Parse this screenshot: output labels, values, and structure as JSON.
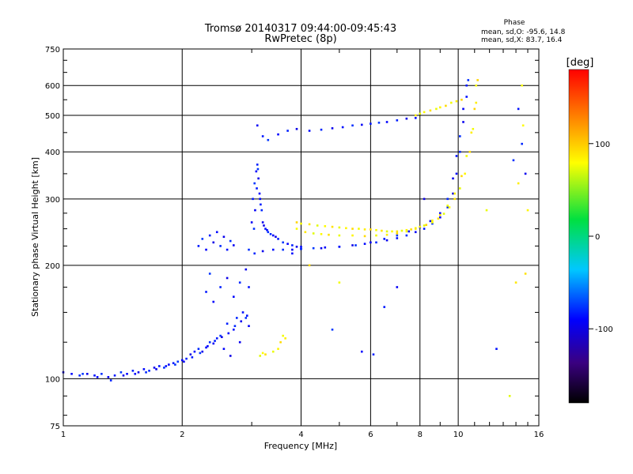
{
  "chart_data": {
    "type": "scatter",
    "title": "Tromsø 20140317 09:44:00-09:45:43",
    "subtitle": "RwPretec (8p)",
    "xlabel": "Frequency [MHz]",
    "ylabel": "Stationary phase Virtual Height [km]",
    "x_scale": "log",
    "y_scale": "log",
    "xlim": [
      1,
      16
    ],
    "ylim": [
      75,
      750
    ],
    "grid": true,
    "xticks": [
      1,
      2,
      4,
      6,
      8,
      10,
      16
    ],
    "xtick_labels": [
      "1",
      "2",
      "4",
      "6",
      "8",
      "10",
      "16"
    ],
    "yticks": [
      75,
      100,
      200,
      300,
      400,
      500,
      600,
      750
    ],
    "ytick_labels": [
      "75",
      "100",
      "200",
      "300",
      "400",
      "500",
      "600",
      "750"
    ],
    "phase_stats": {
      "title": "Phase",
      "lines": [
        "mean, sd,O: -95.6, 14.8",
        "mean, sd,X: 83.7, 16.4"
      ]
    },
    "colorbar": {
      "label": "[deg]",
      "range": [
        -180,
        180
      ],
      "ticks": [
        100,
        0,
        -100
      ],
      "tick_labels": [
        "100",
        "0",
        "-100"
      ]
    },
    "series": [
      {
        "mode": "O",
        "mean_phase": -95.6,
        "sd_phase": 14.8,
        "points": [
          [
            1.0,
            104
          ],
          [
            1.05,
            103
          ],
          [
            1.1,
            102
          ],
          [
            1.15,
            103
          ],
          [
            1.2,
            102
          ],
          [
            1.25,
            103
          ],
          [
            1.3,
            101
          ],
          [
            1.35,
            102
          ],
          [
            1.4,
            104
          ],
          [
            1.45,
            103
          ],
          [
            1.5,
            105
          ],
          [
            1.55,
            104
          ],
          [
            1.6,
            106
          ],
          [
            1.65,
            105
          ],
          [
            1.7,
            107
          ],
          [
            1.75,
            108
          ],
          [
            1.8,
            107
          ],
          [
            1.85,
            109
          ],
          [
            1.9,
            110
          ],
          [
            1.95,
            111
          ],
          [
            2.0,
            112
          ],
          [
            2.05,
            113
          ],
          [
            2.1,
            116
          ],
          [
            2.15,
            118
          ],
          [
            2.2,
            120
          ],
          [
            2.25,
            118
          ],
          [
            2.3,
            121
          ],
          [
            2.35,
            125
          ],
          [
            2.4,
            124
          ],
          [
            2.45,
            128
          ],
          [
            2.5,
            130
          ],
          [
            2.55,
            120
          ],
          [
            2.6,
            140
          ],
          [
            2.65,
            115
          ],
          [
            2.7,
            135
          ],
          [
            2.75,
            145
          ],
          [
            2.8,
            125
          ],
          [
            2.85,
            150
          ],
          [
            2.9,
            145
          ],
          [
            2.95,
            138
          ],
          [
            2.2,
            225
          ],
          [
            2.25,
            235
          ],
          [
            2.3,
            220
          ],
          [
            2.35,
            240
          ],
          [
            2.4,
            230
          ],
          [
            2.45,
            245
          ],
          [
            2.5,
            225
          ],
          [
            2.55,
            238
          ],
          [
            2.6,
            220
          ],
          [
            2.65,
            232
          ],
          [
            2.7,
            226
          ],
          [
            2.3,
            170
          ],
          [
            2.35,
            190
          ],
          [
            2.4,
            160
          ],
          [
            2.5,
            175
          ],
          [
            2.6,
            185
          ],
          [
            2.7,
            165
          ],
          [
            2.8,
            180
          ],
          [
            2.9,
            195
          ],
          [
            2.95,
            175
          ],
          [
            2.95,
            220
          ],
          [
            3.0,
            260
          ],
          [
            3.02,
            300
          ],
          [
            3.05,
            330
          ],
          [
            3.08,
            355
          ],
          [
            3.1,
            370
          ],
          [
            3.12,
            340
          ],
          [
            3.15,
            300
          ],
          [
            3.18,
            280
          ],
          [
            3.2,
            260
          ],
          [
            3.25,
            250
          ],
          [
            3.3,
            245
          ],
          [
            3.4,
            240
          ],
          [
            3.5,
            235
          ],
          [
            3.6,
            230
          ],
          [
            3.7,
            228
          ],
          [
            3.8,
            226
          ],
          [
            3.9,
            224
          ],
          [
            4.0,
            224
          ],
          [
            3.05,
            215
          ],
          [
            3.2,
            218
          ],
          [
            3.4,
            220
          ],
          [
            3.6,
            220
          ],
          [
            3.8,
            220
          ],
          [
            4.0,
            221
          ],
          [
            4.3,
            222
          ],
          [
            4.6,
            223
          ],
          [
            5.0,
            224
          ],
          [
            5.4,
            226
          ],
          [
            5.8,
            228
          ],
          [
            6.2,
            230
          ],
          [
            6.6,
            233
          ],
          [
            7.0,
            236
          ],
          [
            7.4,
            240
          ],
          [
            7.8,
            245
          ],
          [
            8.2,
            250
          ],
          [
            8.6,
            258
          ],
          [
            9.0,
            268
          ],
          [
            9.4,
            285
          ],
          [
            9.7,
            310
          ],
          [
            9.9,
            350
          ],
          [
            10.1,
            400
          ],
          [
            10.3,
            480
          ],
          [
            10.5,
            560
          ],
          [
            10.6,
            620
          ],
          [
            3.1,
            470
          ],
          [
            3.2,
            440
          ],
          [
            3.3,
            430
          ],
          [
            3.5,
            445
          ],
          [
            3.7,
            455
          ],
          [
            3.9,
            460
          ],
          [
            4.2,
            455
          ],
          [
            4.5,
            458
          ],
          [
            4.8,
            462
          ],
          [
            5.1,
            465
          ],
          [
            5.4,
            470
          ],
          [
            5.7,
            472
          ],
          [
            6.0,
            475
          ],
          [
            6.3,
            478
          ],
          [
            6.6,
            480
          ],
          [
            7.0,
            485
          ],
          [
            7.4,
            490
          ],
          [
            7.8,
            492
          ],
          [
            4.0,
            221
          ],
          [
            4.5,
            222
          ],
          [
            5.0,
            224
          ],
          [
            5.5,
            226
          ],
          [
            6.0,
            230
          ],
          [
            6.5,
            235
          ],
          [
            7.0,
            240
          ],
          [
            7.5,
            246
          ],
          [
            8.0,
            252
          ],
          [
            8.5,
            262
          ],
          [
            9.0,
            275
          ],
          [
            9.4,
            300
          ],
          [
            9.7,
            340
          ],
          [
            9.9,
            390
          ],
          [
            10.1,
            440
          ],
          [
            10.3,
            520
          ],
          [
            10.5,
            600
          ],
          [
            1.12,
            103
          ],
          [
            1.22,
            101
          ],
          [
            1.32,
            99
          ],
          [
            1.42,
            102
          ],
          [
            1.52,
            103
          ],
          [
            1.62,
            104
          ],
          [
            1.72,
            106
          ],
          [
            1.82,
            108
          ],
          [
            1.92,
            109
          ],
          [
            2.02,
            111
          ],
          [
            2.12,
            114
          ],
          [
            2.22,
            117
          ],
          [
            2.32,
            122
          ],
          [
            2.42,
            126
          ],
          [
            2.52,
            129
          ],
          [
            2.62,
            132
          ],
          [
            2.72,
            138
          ],
          [
            2.82,
            142
          ],
          [
            2.92,
            147
          ],
          [
            3.04,
            250
          ],
          [
            3.06,
            280
          ],
          [
            3.09,
            320
          ],
          [
            3.11,
            360
          ],
          [
            3.14,
            310
          ],
          [
            3.16,
            290
          ],
          [
            3.22,
            255
          ],
          [
            3.28,
            248
          ],
          [
            3.35,
            242
          ],
          [
            3.45,
            238
          ],
          [
            12.5,
            120
          ],
          [
            13.8,
            380
          ],
          [
            7.0,
            175
          ],
          [
            6.5,
            155
          ],
          [
            4.8,
            135
          ],
          [
            5.7,
            118
          ],
          [
            6.1,
            116
          ],
          [
            8.2,
            300
          ],
          [
            3.8,
            215
          ],
          [
            14.5,
            420
          ],
          [
            14.8,
            350
          ],
          [
            14.2,
            520
          ]
        ]
      },
      {
        "mode": "X",
        "mean_phase": 83.7,
        "sd_phase": 16.4,
        "points": [
          [
            3.15,
            115
          ],
          [
            3.2,
            117
          ],
          [
            3.25,
            116
          ],
          [
            3.4,
            118
          ],
          [
            3.5,
            120
          ],
          [
            3.55,
            125
          ],
          [
            3.6,
            130
          ],
          [
            3.65,
            128
          ],
          [
            3.9,
            260
          ],
          [
            4.0,
            258
          ],
          [
            4.2,
            257
          ],
          [
            4.4,
            255
          ],
          [
            4.6,
            254
          ],
          [
            4.8,
            253
          ],
          [
            5.0,
            252
          ],
          [
            5.2,
            251
          ],
          [
            5.4,
            250
          ],
          [
            5.6,
            250
          ],
          [
            5.8,
            249
          ],
          [
            6.0,
            249
          ],
          [
            6.2,
            248
          ],
          [
            6.4,
            247
          ],
          [
            6.6,
            246
          ],
          [
            6.8,
            246
          ],
          [
            7.0,
            246
          ],
          [
            7.2,
            247
          ],
          [
            7.4,
            248
          ],
          [
            7.6,
            249
          ],
          [
            7.8,
            251
          ],
          [
            8.0,
            253
          ],
          [
            8.3,
            256
          ],
          [
            8.6,
            260
          ],
          [
            8.9,
            266
          ],
          [
            9.2,
            274
          ],
          [
            9.5,
            285
          ],
          [
            9.8,
            300
          ],
          [
            10.1,
            320
          ],
          [
            10.4,
            350
          ],
          [
            10.7,
            400
          ],
          [
            10.9,
            460
          ],
          [
            11.1,
            540
          ],
          [
            11.2,
            620
          ],
          [
            3.9,
            250
          ],
          [
            4.1,
            245
          ],
          [
            4.3,
            243
          ],
          [
            4.5,
            242
          ],
          [
            4.7,
            241
          ],
          [
            5.0,
            240
          ],
          [
            5.4,
            240
          ],
          [
            5.8,
            239
          ],
          [
            6.2,
            240
          ],
          [
            6.6,
            241
          ],
          [
            7.0,
            243
          ],
          [
            7.4,
            246
          ],
          [
            7.8,
            250
          ],
          [
            8.2,
            255
          ],
          [
            8.6,
            263
          ],
          [
            9.0,
            272
          ],
          [
            9.4,
            288
          ],
          [
            9.8,
            310
          ],
          [
            10.2,
            345
          ],
          [
            10.5,
            390
          ],
          [
            10.8,
            450
          ],
          [
            11.0,
            520
          ],
          [
            11.1,
            600
          ],
          [
            7.8,
            500
          ],
          [
            8.0,
            505
          ],
          [
            8.2,
            510
          ],
          [
            8.5,
            515
          ],
          [
            8.8,
            520
          ],
          [
            9.0,
            525
          ],
          [
            9.3,
            530
          ],
          [
            9.6,
            540
          ],
          [
            9.9,
            545
          ],
          [
            10.2,
            550
          ],
          [
            14.5,
            600
          ],
          [
            14.0,
            180
          ],
          [
            13.5,
            90
          ],
          [
            14.6,
            470
          ],
          [
            14.8,
            190
          ],
          [
            11.8,
            280
          ],
          [
            15.0,
            280
          ],
          [
            4.2,
            200
          ],
          [
            5.0,
            180
          ],
          [
            14.2,
            330
          ]
        ]
      }
    ]
  }
}
